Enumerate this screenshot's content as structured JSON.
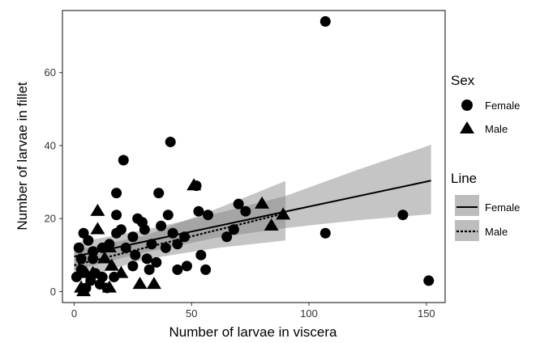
{
  "chart_data": {
    "type": "scatter",
    "xlabel": "Number of larvae in viscera",
    "ylabel": "Number of larvae in fillet",
    "xlim": [
      -5,
      158
    ],
    "ylim": [
      -3,
      77
    ],
    "x_ticks": [
      "0",
      "50",
      "100",
      "150"
    ],
    "y_ticks": [
      "0",
      "20",
      "40",
      "60"
    ],
    "x_tick_values": [
      0,
      50,
      100,
      150
    ],
    "y_tick_values": [
      0,
      20,
      40,
      60
    ],
    "grid": false,
    "legend_placement": "right",
    "series": [
      {
        "name": "Female",
        "marker": "circle",
        "points": [
          [
            107,
            74
          ],
          [
            41,
            41
          ],
          [
            21,
            36
          ],
          [
            18,
            27
          ],
          [
            36,
            27
          ],
          [
            52,
            29
          ],
          [
            53,
            22
          ],
          [
            57,
            21
          ],
          [
            70,
            24
          ],
          [
            73,
            22
          ],
          [
            40,
            21
          ],
          [
            18,
            21
          ],
          [
            27,
            20
          ],
          [
            29,
            19
          ],
          [
            37,
            18
          ],
          [
            30,
            17
          ],
          [
            42,
            16
          ],
          [
            47,
            15
          ],
          [
            65,
            15
          ],
          [
            68,
            17
          ],
          [
            18,
            16
          ],
          [
            20,
            17
          ],
          [
            25,
            15
          ],
          [
            33,
            13
          ],
          [
            39,
            12
          ],
          [
            44,
            13
          ],
          [
            15,
            13
          ],
          [
            22,
            12
          ],
          [
            12,
            12
          ],
          [
            8,
            11
          ],
          [
            4,
            16
          ],
          [
            6,
            14
          ],
          [
            2,
            12
          ],
          [
            3,
            9
          ],
          [
            8,
            9
          ],
          [
            26,
            10
          ],
          [
            31,
            9
          ],
          [
            35,
            8
          ],
          [
            25,
            7
          ],
          [
            32,
            6
          ],
          [
            44,
            6
          ],
          [
            48,
            7
          ],
          [
            54,
            10
          ],
          [
            56,
            6
          ],
          [
            1,
            4
          ],
          [
            3,
            6
          ],
          [
            9,
            5
          ],
          [
            12,
            4
          ],
          [
            17,
            4
          ],
          [
            7,
            3
          ],
          [
            11,
            2
          ],
          [
            5,
            1
          ],
          [
            14,
            1
          ],
          [
            107,
            16
          ],
          [
            140,
            21
          ],
          [
            151,
            3
          ]
        ]
      },
      {
        "name": "Male",
        "marker": "triangle",
        "points": [
          [
            10,
            22
          ],
          [
            10,
            17
          ],
          [
            51,
            29
          ],
          [
            80,
            24
          ],
          [
            89,
            21
          ],
          [
            84,
            18
          ],
          [
            15,
            12
          ],
          [
            13,
            9
          ],
          [
            16,
            7
          ],
          [
            5,
            5
          ],
          [
            8,
            5
          ],
          [
            20,
            5
          ],
          [
            28,
            2
          ],
          [
            34,
            2
          ],
          [
            3,
            1
          ],
          [
            15,
            1
          ],
          [
            4,
            0
          ]
        ]
      }
    ],
    "fit_lines": [
      {
        "name": "Female",
        "style": "solid",
        "x": [
          0,
          152
        ],
        "y": [
          9.6,
          30.4
        ],
        "band_x": [
          0,
          30,
          60,
          90,
          120,
          152
        ],
        "band_lower": [
          5.9,
          10.7,
          14.7,
          17.4,
          19.5,
          21.2
        ],
        "band_upper": [
          13.3,
          16.9,
          21.3,
          26.2,
          33.2,
          40.2
        ]
      },
      {
        "name": "Male",
        "style": "dotted",
        "x": [
          0,
          90
        ],
        "y": [
          7.2,
          21.5
        ],
        "band_x": [
          0,
          30,
          60,
          90
        ],
        "band_lower": [
          3.1,
          8.8,
          11.9,
          14.0
        ],
        "band_upper": [
          11.3,
          15.3,
          22.5,
          30.3
        ]
      }
    ],
    "legends": [
      {
        "title": "Sex",
        "entries": [
          "Female",
          "Male"
        ]
      },
      {
        "title": "Line",
        "entries": [
          "Female",
          "Male"
        ]
      }
    ],
    "colors": {
      "points": "#000000",
      "band": "#7f7f7f",
      "line": "#000000",
      "panel_border": "#333333",
      "legend_key_bg": "#bdbdbd"
    }
  }
}
